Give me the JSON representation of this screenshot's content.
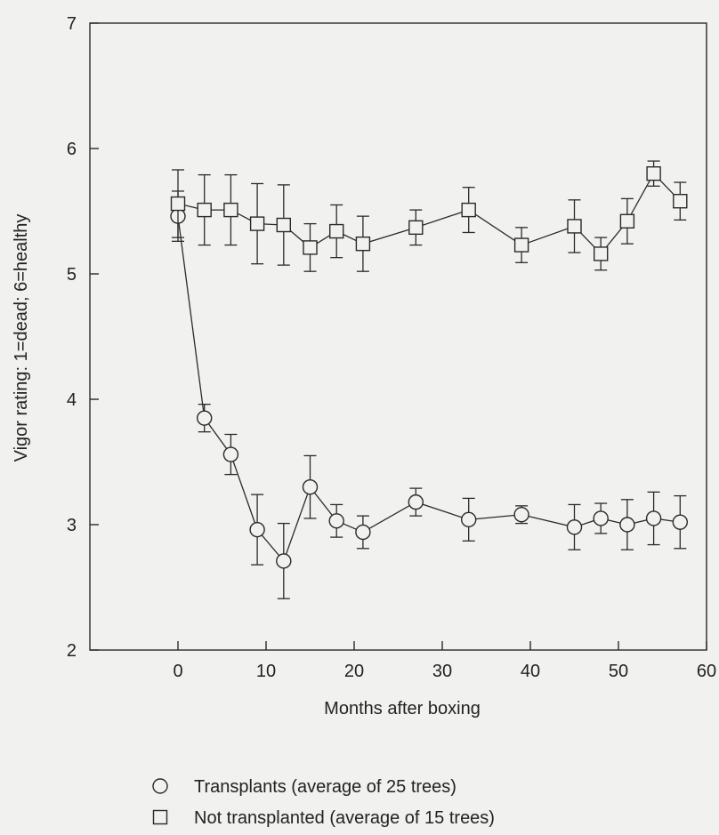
{
  "chart_data": {
    "type": "scatter",
    "xlabel": "Months after boxing",
    "ylabel": "Vigor rating: 1=dead; 6=healthy",
    "xlim": [
      -10,
      60
    ],
    "ylim": [
      2,
      7
    ],
    "xticks": [
      0,
      10,
      20,
      30,
      40,
      50,
      60
    ],
    "yticks": [
      2,
      3,
      4,
      5,
      6,
      7
    ],
    "grid": false,
    "legend_position": "bottom",
    "series": [
      {
        "name": "Transplants (average of 25 trees)",
        "marker": "circle",
        "x": [
          0,
          3,
          6,
          9,
          12,
          15,
          18,
          21,
          27,
          33,
          39,
          45,
          48,
          51,
          54,
          57
        ],
        "y": [
          5.46,
          3.85,
          3.56,
          2.96,
          2.71,
          3.3,
          3.03,
          2.94,
          3.18,
          3.04,
          3.08,
          2.98,
          3.05,
          3.0,
          3.05,
          3.02
        ],
        "error": [
          0.2,
          0.11,
          0.16,
          0.28,
          0.3,
          0.25,
          0.13,
          0.13,
          0.11,
          0.17,
          0.07,
          0.18,
          0.12,
          0.2,
          0.21,
          0.21
        ]
      },
      {
        "name": "Not transplanted (average of 15 trees)",
        "marker": "square",
        "x": [
          0,
          3,
          6,
          9,
          12,
          15,
          18,
          21,
          27,
          33,
          39,
          45,
          48,
          51,
          54,
          57
        ],
        "y": [
          5.56,
          5.51,
          5.51,
          5.4,
          5.39,
          5.21,
          5.34,
          5.24,
          5.37,
          5.51,
          5.23,
          5.38,
          5.16,
          5.42,
          5.8,
          5.58
        ],
        "error": [
          0.27,
          0.28,
          0.28,
          0.32,
          0.32,
          0.19,
          0.21,
          0.22,
          0.14,
          0.18,
          0.14,
          0.21,
          0.13,
          0.18,
          0.1,
          0.15
        ]
      }
    ]
  }
}
